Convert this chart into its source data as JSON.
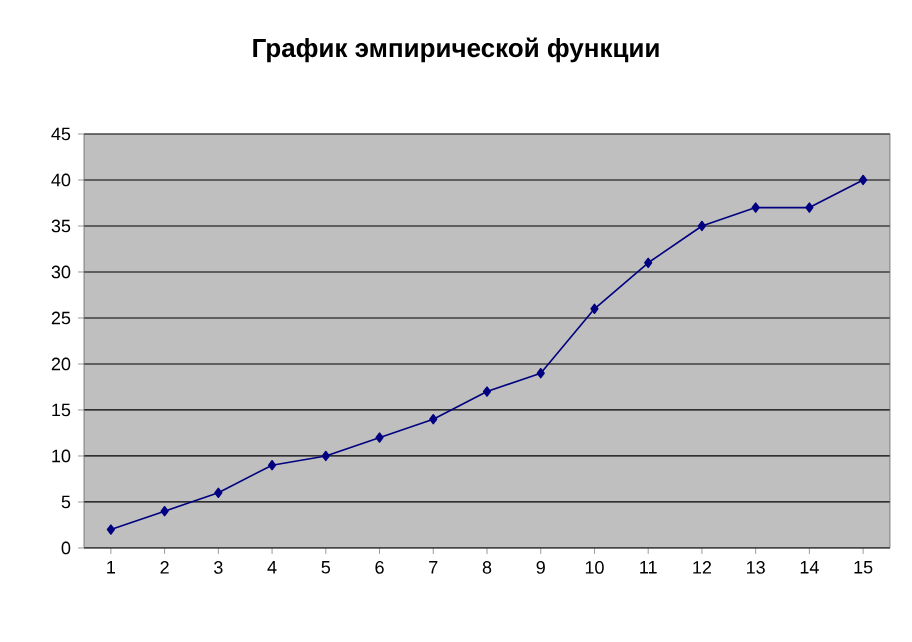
{
  "chart_data": {
    "type": "line",
    "title": "График эмпирической функции",
    "categories": [
      "1",
      "2",
      "3",
      "4",
      "5",
      "6",
      "7",
      "8",
      "9",
      "10",
      "11",
      "12",
      "13",
      "14",
      "15"
    ],
    "values": [
      2,
      4,
      6,
      9,
      10,
      12,
      14,
      17,
      19,
      26,
      31,
      35,
      37,
      37,
      40
    ],
    "color": "#000080",
    "marker": "diamond",
    "line_style": "solid",
    "ylim": [
      0,
      45
    ],
    "yticks": [
      0,
      5,
      10,
      15,
      20,
      25,
      30,
      35,
      40,
      45
    ],
    "grid": "y"
  }
}
